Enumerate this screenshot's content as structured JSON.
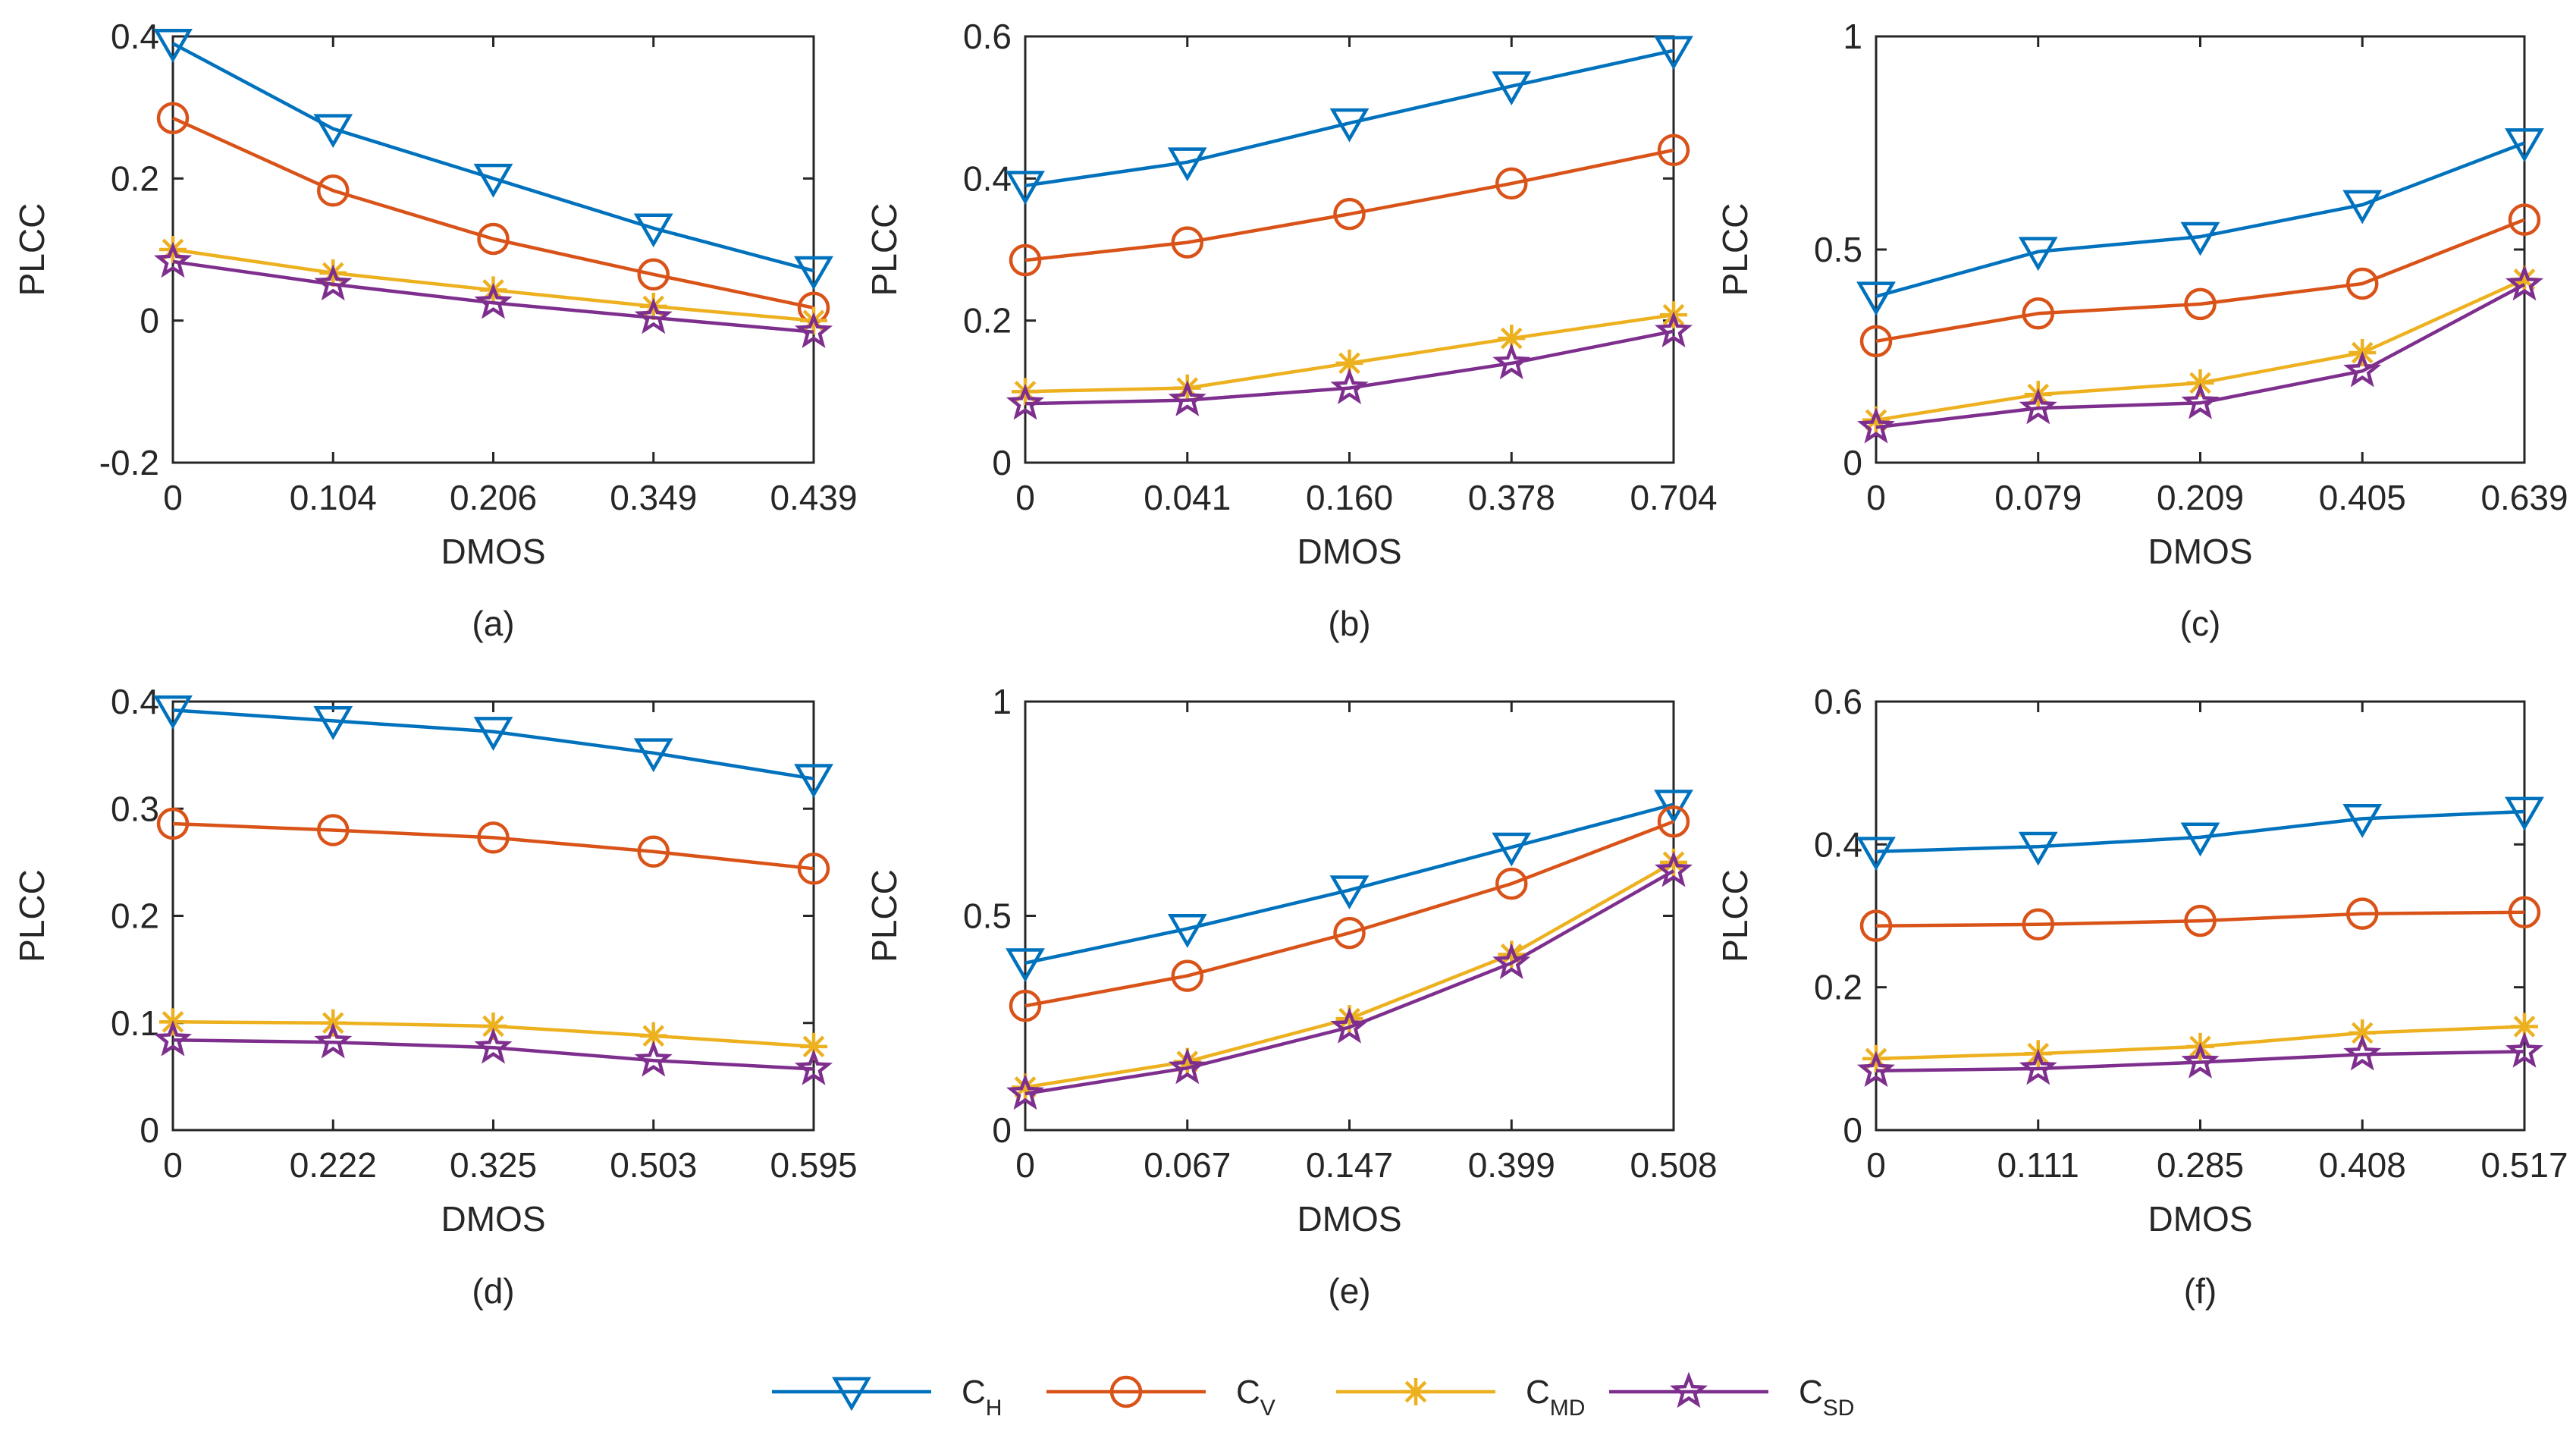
{
  "series_styles": [
    {
      "key": "CH",
      "name": "C_H",
      "label_main": "C",
      "label_sub": "H",
      "color": "#0072BD",
      "marker": "triangle-down"
    },
    {
      "key": "CV",
      "name": "C_V",
      "label_main": "C",
      "label_sub": "V",
      "color": "#D95319",
      "marker": "circle"
    },
    {
      "key": "CMD",
      "name": "C_MD",
      "label_main": "C",
      "label_sub": "MD",
      "color": "#EDB120",
      "marker": "asterisk"
    },
    {
      "key": "CSD",
      "name": "C_SD",
      "label_main": "C",
      "label_sub": "SD",
      "color": "#7E2F8E",
      "marker": "star"
    }
  ],
  "chart_data": [
    {
      "type": "line",
      "panel": "(a)",
      "xlabel": "DMOS",
      "ylabel": "PLCC",
      "categories": [
        "0",
        "0.104",
        "0.206",
        "0.349",
        "0.439"
      ],
      "ylim": [
        -0.2,
        0.4
      ],
      "yticks": [
        -0.2,
        0,
        0.2,
        0.4
      ],
      "ytick_labels": [
        "-0.2",
        "0",
        "0.2",
        "0.4"
      ],
      "series": [
        {
          "name": "C_H",
          "values": [
            0.39,
            0.27,
            0.2,
            0.13,
            0.07
          ]
        },
        {
          "name": "C_V",
          "values": [
            0.285,
            0.183,
            0.115,
            0.065,
            0.018
          ]
        },
        {
          "name": "C_MD",
          "values": [
            0.1,
            0.067,
            0.043,
            0.02,
            0.0
          ]
        },
        {
          "name": "C_SD",
          "values": [
            0.083,
            0.051,
            0.025,
            0.004,
            -0.016
          ]
        }
      ]
    },
    {
      "type": "line",
      "panel": "(b)",
      "xlabel": "DMOS",
      "ylabel": "PLCC",
      "categories": [
        "0",
        "0.041",
        "0.160",
        "0.378",
        "0.704"
      ],
      "ylim": [
        0,
        0.6
      ],
      "yticks": [
        0,
        0.2,
        0.4,
        0.6
      ],
      "ytick_labels": [
        "0",
        "0.2",
        "0.4",
        "0.6"
      ],
      "series": [
        {
          "name": "C_H",
          "values": [
            0.39,
            0.423,
            0.478,
            0.53,
            0.58
          ]
        },
        {
          "name": "C_V",
          "values": [
            0.285,
            0.31,
            0.35,
            0.393,
            0.44
          ]
        },
        {
          "name": "C_MD",
          "values": [
            0.1,
            0.105,
            0.14,
            0.175,
            0.208
          ]
        },
        {
          "name": "C_SD",
          "values": [
            0.083,
            0.088,
            0.105,
            0.14,
            0.185
          ]
        }
      ]
    },
    {
      "type": "line",
      "panel": "(c)",
      "xlabel": "DMOS",
      "ylabel": "PLCC",
      "categories": [
        "0",
        "0.079",
        "0.209",
        "0.405",
        "0.639"
      ],
      "ylim": [
        0,
        1
      ],
      "yticks": [
        0,
        0.5,
        1
      ],
      "ytick_labels": [
        "0",
        "0.5",
        "1"
      ],
      "series": [
        {
          "name": "C_H",
          "values": [
            0.39,
            0.495,
            0.53,
            0.605,
            0.75
          ]
        },
        {
          "name": "C_V",
          "values": [
            0.285,
            0.35,
            0.372,
            0.42,
            0.57
          ]
        },
        {
          "name": "C_MD",
          "values": [
            0.1,
            0.16,
            0.187,
            0.258,
            0.43
          ]
        },
        {
          "name": "C_SD",
          "values": [
            0.083,
            0.128,
            0.14,
            0.215,
            0.418
          ]
        }
      ]
    },
    {
      "type": "line",
      "panel": "(d)",
      "xlabel": "DMOS",
      "ylabel": "PLCC",
      "categories": [
        "0",
        "0.222",
        "0.325",
        "0.503",
        "0.595"
      ],
      "ylim": [
        0,
        0.4
      ],
      "yticks": [
        0,
        0.1,
        0.2,
        0.3,
        0.4
      ],
      "ytick_labels": [
        "0",
        "0.1",
        "0.2",
        "0.3",
        "0.4"
      ],
      "series": [
        {
          "name": "C_H",
          "values": [
            0.392,
            0.382,
            0.372,
            0.352,
            0.328
          ]
        },
        {
          "name": "C_V",
          "values": [
            0.286,
            0.28,
            0.273,
            0.26,
            0.244
          ]
        },
        {
          "name": "C_MD",
          "values": [
            0.101,
            0.1,
            0.097,
            0.088,
            0.078
          ]
        },
        {
          "name": "C_SD",
          "values": [
            0.084,
            0.082,
            0.077,
            0.065,
            0.057
          ]
        }
      ]
    },
    {
      "type": "line",
      "panel": "(e)",
      "xlabel": "DMOS",
      "ylabel": "PLCC",
      "categories": [
        "0",
        "0.067",
        "0.147",
        "0.399",
        "0.508"
      ],
      "ylim": [
        0,
        1
      ],
      "yticks": [
        0,
        0.5,
        1
      ],
      "ytick_labels": [
        "0",
        "0.5",
        "1"
      ],
      "series": [
        {
          "name": "C_H",
          "values": [
            0.39,
            0.47,
            0.56,
            0.66,
            0.76
          ]
        },
        {
          "name": "C_V",
          "values": [
            0.29,
            0.36,
            0.46,
            0.575,
            0.72
          ]
        },
        {
          "name": "C_MD",
          "values": [
            0.1,
            0.16,
            0.26,
            0.41,
            0.625
          ]
        },
        {
          "name": "C_SD",
          "values": [
            0.085,
            0.145,
            0.24,
            0.39,
            0.605
          ]
        }
      ]
    },
    {
      "type": "line",
      "panel": "(f)",
      "xlabel": "DMOS",
      "ylabel": "PLCC",
      "categories": [
        "0",
        "0.111",
        "0.285",
        "0.408",
        "0.517"
      ],
      "ylim": [
        0,
        0.6
      ],
      "yticks": [
        0,
        0.2,
        0.4,
        0.6
      ],
      "ytick_labels": [
        "0",
        "0.2",
        "0.4",
        "0.6"
      ],
      "series": [
        {
          "name": "C_H",
          "values": [
            0.39,
            0.397,
            0.41,
            0.436,
            0.446
          ]
        },
        {
          "name": "C_V",
          "values": [
            0.286,
            0.288,
            0.293,
            0.303,
            0.305
          ]
        },
        {
          "name": "C_MD",
          "values": [
            0.1,
            0.107,
            0.117,
            0.136,
            0.145
          ]
        },
        {
          "name": "C_SD",
          "values": [
            0.083,
            0.086,
            0.095,
            0.106,
            0.11
          ]
        }
      ]
    }
  ]
}
